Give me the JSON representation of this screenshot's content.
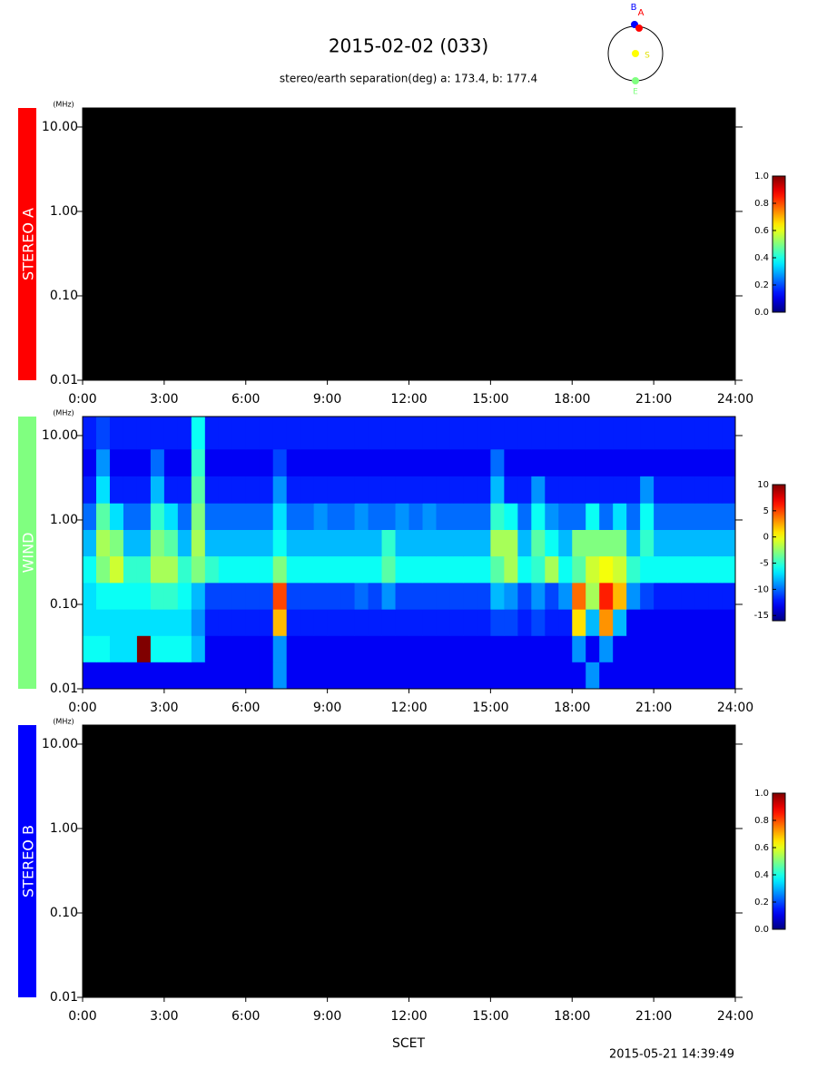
{
  "title": "2015-02-02 (033)",
  "subtitle": "stereo/earth separation(deg) a: 173.4, b: 177.4",
  "orbit": {
    "stereo_b": "B",
    "stereo_a": "A",
    "sun": "S",
    "earth": "E"
  },
  "xlabel": "SCET",
  "timestamp": "2015-05-21 14:39:49",
  "chart_data": [
    {
      "type": "heatmap",
      "label": "STEREO A",
      "label_color": "#ff0000",
      "y_unit": "(MHz)",
      "log_y": true,
      "colormap": "jet",
      "ylim": [
        0.01,
        16.8
      ],
      "yticks": [
        0.01,
        {
          "value": 0.1,
          "label": "0.10"
        },
        {
          "value": 1,
          "label": "1.00"
        },
        {
          "value": 10,
          "label": "10.00"
        }
      ],
      "xlim": [
        0,
        24
      ],
      "xticks": [
        {
          "value": 0,
          "label": "0:00"
        },
        {
          "value": 3,
          "label": "3:00"
        },
        {
          "value": 6,
          "label": "6:00"
        },
        {
          "value": 9,
          "label": "9:00"
        },
        {
          "value": 12,
          "label": "12:00"
        },
        {
          "value": 15,
          "label": "15:00"
        },
        {
          "value": 18,
          "label": "18:00"
        },
        {
          "value": 21,
          "label": "21:00"
        },
        {
          "value": 24,
          "label": "24:00"
        }
      ],
      "clim": [
        0,
        1
      ],
      "cticks": [
        {
          "value": 0,
          "label": "0.0"
        },
        {
          "value": 0.2,
          "label": "0.2"
        },
        {
          "value": 0.4,
          "label": "0.4"
        },
        {
          "value": 0.6,
          "label": "0.6"
        },
        {
          "value": 0.8,
          "label": "0.8"
        },
        {
          "value": 1,
          "label": "1.0"
        }
      ]
    },
    {
      "type": "heatmap",
      "label": "WIND",
      "label_color": "#80ff80",
      "y_unit": "(MHz)",
      "log_y": true,
      "colormap": "jet",
      "ylim": [
        0.01,
        16.8
      ],
      "yticks": [
        0.01,
        {
          "value": 0.1,
          "label": "0.10"
        },
        {
          "value": 1,
          "label": "1.00"
        },
        {
          "value": 10,
          "label": "10.00"
        }
      ],
      "xlim": [
        0,
        24
      ],
      "xticks": [
        {
          "value": 0,
          "label": "0:00"
        },
        {
          "value": 3,
          "label": "3:00"
        },
        {
          "value": 6,
          "label": "6:00"
        },
        {
          "value": 9,
          "label": "9:00"
        },
        {
          "value": 12,
          "label": "12:00"
        },
        {
          "value": 15,
          "label": "15:00"
        },
        {
          "value": 18,
          "label": "18:00"
        },
        {
          "value": 21,
          "label": "21:00"
        },
        {
          "value": 24,
          "label": "24:00"
        }
      ],
      "clim": [
        -16,
        10
      ],
      "cticks": [
        -15,
        -10,
        -5,
        0,
        5,
        10
      ],
      "x": [
        0.25,
        0.75,
        1.25,
        1.75,
        2.25,
        2.75,
        3.25,
        3.75,
        4.25,
        4.75,
        5.25,
        5.75,
        6.25,
        6.75,
        7.25,
        7.75,
        8.25,
        8.75,
        9.25,
        9.75,
        10.25,
        10.75,
        11.25,
        11.75,
        12.25,
        12.75,
        13.25,
        13.75,
        14.25,
        14.75,
        15.25,
        15.75,
        16.25,
        16.75,
        17.25,
        17.75,
        18.25,
        18.75,
        19.25,
        19.75,
        20.25,
        20.75,
        21.25,
        21.75,
        22.25,
        22.75,
        23.25,
        23.75
      ],
      "y": [
        0.0145,
        0.03,
        0.061,
        0.127,
        0.26,
        0.54,
        1.1,
        2.3,
        4.8,
        10
      ],
      "z": [
        [
          -13,
          -13,
          -13,
          -13,
          -13,
          -13,
          -13,
          -13,
          -13,
          -13,
          -13,
          -13,
          -13,
          -13,
          -9,
          -13,
          -13,
          -13,
          -13,
          -13,
          -13,
          -13,
          -13,
          -13,
          -13,
          -13,
          -13,
          -13,
          -13,
          -13,
          -13,
          -13,
          -13,
          -13,
          -13,
          -13,
          -13,
          -9,
          -13,
          -13,
          -13,
          -13,
          -13,
          -13,
          -13,
          -13,
          -13,
          -13
        ],
        [
          -6,
          -6,
          -7,
          -7,
          10,
          -6,
          -6,
          -6,
          -8,
          -13,
          -13,
          -13,
          -13,
          -13,
          -9,
          -13,
          -13,
          -13,
          -13,
          -13,
          -13,
          -13,
          -13,
          -13,
          -13,
          -13,
          -13,
          -13,
          -13,
          -13,
          -13,
          -13,
          -13,
          -13,
          -13,
          -13,
          -9,
          -13,
          -9,
          -13,
          -13,
          -13,
          -13,
          -13,
          -13,
          -13,
          -13,
          -13
        ],
        [
          -7,
          -7,
          -7,
          -7,
          -7,
          -7,
          -7,
          -7,
          -9,
          -12,
          -12,
          -12,
          -12,
          -12,
          2,
          -12,
          -12,
          -12,
          -12,
          -12,
          -12,
          -12,
          -12,
          -12,
          -12,
          -12,
          -12,
          -12,
          -12,
          -12,
          -11,
          -11,
          -12,
          -11,
          -12,
          -12,
          1,
          -8,
          3,
          -8,
          -13,
          -13,
          -13,
          -13,
          -13,
          -13,
          -13,
          -13
        ],
        [
          -7,
          -6,
          -6,
          -6,
          -6,
          -5,
          -5,
          -6,
          -8,
          -11,
          -11,
          -11,
          -11,
          -11,
          5,
          -11,
          -11,
          -11,
          -11,
          -11,
          -10,
          -11,
          -9,
          -11,
          -11,
          -11,
          -11,
          -11,
          -11,
          -11,
          -8,
          -9,
          -11,
          -9,
          -11,
          -9,
          4,
          -2,
          6,
          2,
          -9,
          -11,
          -12,
          -12,
          -12,
          -12,
          -12,
          -12
        ],
        [
          -6,
          -3,
          -1,
          -5,
          -5,
          -2,
          -2,
          -5,
          -3,
          -5,
          -6,
          -6,
          -6,
          -6,
          -3,
          -6,
          -6,
          -6,
          -6,
          -6,
          -6,
          -6,
          -4,
          -6,
          -6,
          -6,
          -6,
          -6,
          -6,
          -6,
          -4,
          -2,
          -6,
          -5,
          -2,
          -6,
          -4,
          -1,
          0,
          -1,
          -5,
          -6,
          -6,
          -6,
          -6,
          -6,
          -6,
          -6
        ],
        [
          -8,
          -2,
          -3,
          -8,
          -8,
          -3,
          -4,
          -8,
          -2,
          -8,
          -8,
          -8,
          -8,
          -8,
          -6,
          -8,
          -8,
          -8,
          -8,
          -8,
          -8,
          -8,
          -5,
          -8,
          -8,
          -8,
          -8,
          -8,
          -8,
          -8,
          -2,
          -2,
          -8,
          -4,
          -6,
          -8,
          -3,
          -3,
          -3,
          -3,
          -8,
          -5,
          -8,
          -8,
          -8,
          -8,
          -8,
          -8
        ],
        [
          -10,
          -4,
          -7,
          -10,
          -10,
          -5,
          -7,
          -10,
          -3,
          -10,
          -10,
          -10,
          -10,
          -10,
          -7,
          -10,
          -10,
          -9,
          -10,
          -10,
          -9,
          -10,
          -10,
          -9,
          -10,
          -9,
          -10,
          -10,
          -10,
          -10,
          -5,
          -6,
          -10,
          -6,
          -9,
          -10,
          -10,
          -6,
          -10,
          -7,
          -10,
          -6,
          -10,
          -10,
          -10,
          -10,
          -10,
          -10
        ],
        [
          -12,
          -7,
          -12,
          -12,
          -12,
          -8,
          -12,
          -12,
          -4,
          -12,
          -12,
          -12,
          -12,
          -12,
          -9,
          -12,
          -12,
          -12,
          -12,
          -12,
          -12,
          -12,
          -12,
          -12,
          -12,
          -12,
          -12,
          -12,
          -12,
          -12,
          -8,
          -12,
          -12,
          -9,
          -12,
          -12,
          -12,
          -12,
          -12,
          -12,
          -12,
          -9,
          -12,
          -12,
          -12,
          -12,
          -12,
          -12
        ],
        [
          -13,
          -9,
          -13,
          -13,
          -13,
          -10,
          -13,
          -13,
          -5,
          -13,
          -13,
          -13,
          -13,
          -13,
          -11,
          -13,
          -13,
          -13,
          -13,
          -13,
          -13,
          -13,
          -13,
          -13,
          -13,
          -13,
          -13,
          -13,
          -13,
          -13,
          -10,
          -13,
          -13,
          -13,
          -13,
          -13,
          -13,
          -13,
          -13,
          -13,
          -13,
          -13,
          -13,
          -13,
          -13,
          -13,
          -13,
          -13
        ],
        [
          -12,
          -11,
          -12,
          -12,
          -12,
          -12,
          -12,
          -12,
          -6,
          -12,
          -12,
          -12,
          -12,
          -12,
          -12,
          -12,
          -12,
          -12,
          -12,
          -12,
          -12,
          -12,
          -12,
          -12,
          -12,
          -12,
          -12,
          -12,
          -12,
          -12,
          -12,
          -12,
          -12,
          -12,
          -12,
          -12,
          -12,
          -12,
          -12,
          -12,
          -12,
          -12,
          -12,
          -12,
          -12,
          -12,
          -12,
          -12
        ]
      ]
    },
    {
      "type": "heatmap",
      "label": "STEREO B",
      "label_color": "#0000ff",
      "y_unit": "(MHz)",
      "log_y": true,
      "colormap": "jet",
      "ylim": [
        0.01,
        16.8
      ],
      "yticks": [
        0.01,
        {
          "value": 0.1,
          "label": "0.10"
        },
        {
          "value": 1,
          "label": "1.00"
        },
        {
          "value": 10,
          "label": "10.00"
        }
      ],
      "xlim": [
        0,
        24
      ],
      "xticks": [
        {
          "value": 0,
          "label": "0:00"
        },
        {
          "value": 3,
          "label": "3:00"
        },
        {
          "value": 6,
          "label": "6:00"
        },
        {
          "value": 9,
          "label": "9:00"
        },
        {
          "value": 12,
          "label": "12:00"
        },
        {
          "value": 15,
          "label": "15:00"
        },
        {
          "value": 18,
          "label": "18:00"
        },
        {
          "value": 21,
          "label": "21:00"
        },
        {
          "value": 24,
          "label": "24:00"
        }
      ],
      "clim": [
        0,
        1
      ],
      "cticks": [
        {
          "value": 0,
          "label": "0.0"
        },
        {
          "value": 0.2,
          "label": "0.2"
        },
        {
          "value": 0.4,
          "label": "0.4"
        },
        {
          "value": 0.6,
          "label": "0.6"
        },
        {
          "value": 0.8,
          "label": "0.8"
        },
        {
          "value": 1,
          "label": "1.0"
        }
      ]
    }
  ]
}
